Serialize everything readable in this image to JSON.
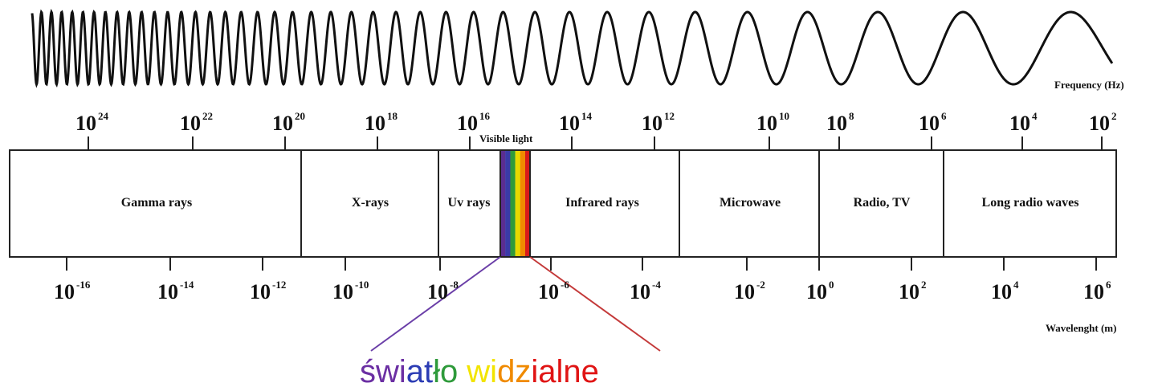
{
  "frequency_label": "Frequency  (Hz)",
  "tick_base": "10",
  "frequency_exponents": [
    "24",
    "22",
    "20",
    "18",
    "16",
    "14",
    "12",
    "10",
    "8",
    "6",
    "4",
    "2"
  ],
  "visible_label": "Visible light",
  "bands": [
    "Gamma rays",
    "X-rays",
    "Uv rays",
    "Infrared rays",
    "Microwave",
    "Radio, TV",
    "Long radio waves"
  ],
  "wavelength_exponents": [
    "-16",
    "-14",
    "-12",
    "-10",
    "-8",
    "-6",
    "-4",
    "-2",
    "0",
    "2",
    "4",
    "6"
  ],
  "wavelength_label": "Wavelenght  (m)",
  "caption": [
    {
      "text": "świ",
      "color": "#6b2fa3"
    },
    {
      "text": "at",
      "color": "#2b3cb4"
    },
    {
      "text": "ło",
      "color": "#2e9a3a"
    },
    {
      "text": "wi",
      "color": "#f2e400"
    },
    {
      "text": "dz",
      "color": "#f08a00"
    },
    {
      "text": "ialne",
      "color": "#e01414"
    }
  ]
}
